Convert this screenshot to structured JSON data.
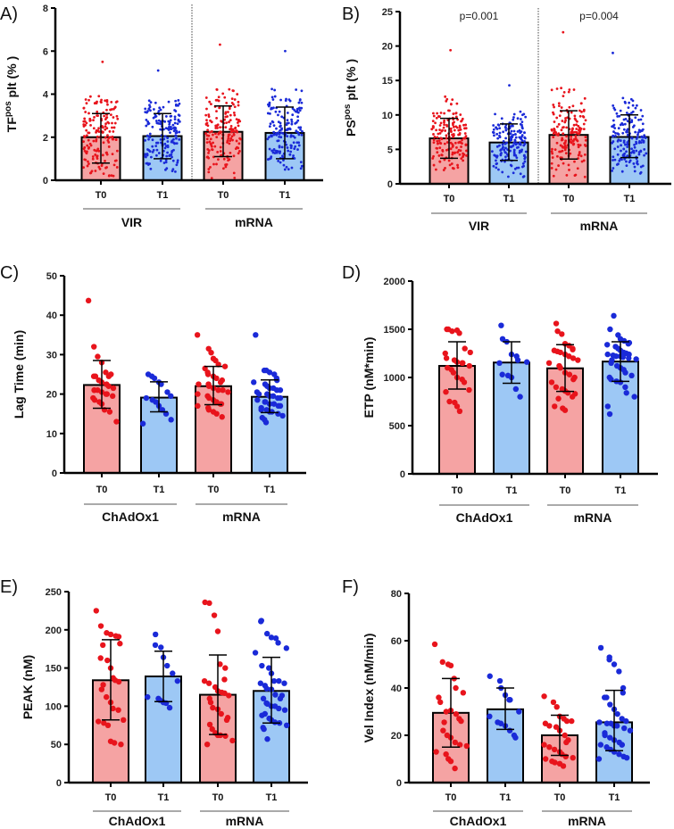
{
  "colors": {
    "t0_bar": "#f5a3a3",
    "t1_bar": "#9dc8f5",
    "t0_point": "#e8141c",
    "t1_point": "#1a2ad8",
    "axis": "#000000"
  },
  "chart_data": [
    {
      "panel": "A)",
      "type": "bar",
      "ylabel": {
        "base": "TF",
        "sup": "pos",
        "rest": " plt (% )"
      },
      "ylim": [
        0,
        8
      ],
      "yticks": [
        "0",
        "2",
        "4",
        "6",
        "8"
      ],
      "categories": [
        "T0",
        "T1",
        "T0",
        "T1"
      ],
      "groups": [
        "VIR",
        "mRNA"
      ],
      "separator": true,
      "pvalues": [],
      "bars": [
        {
          "mean": 2.0,
          "sd": [
            0.8,
            3.1
          ],
          "point_range": [
            0.2,
            5.5
          ]
        },
        {
          "mean": 2.05,
          "sd": [
            1.0,
            3.1
          ],
          "point_range": [
            0.4,
            5.1
          ]
        },
        {
          "mean": 2.25,
          "sd": [
            1.1,
            3.45
          ],
          "point_range": [
            0.1,
            6.3
          ]
        },
        {
          "mean": 2.2,
          "sd": [
            1.0,
            3.4
          ],
          "point_range": [
            0.5,
            6.0
          ]
        }
      ]
    },
    {
      "panel": "B)",
      "type": "bar",
      "ylabel": {
        "base": "PS",
        "sup": "pos",
        "rest": " plt (% )"
      },
      "ylim": [
        0,
        25
      ],
      "yticks": [
        "0",
        "5",
        "10",
        "15",
        "20",
        "25"
      ],
      "categories": [
        "T0",
        "T1",
        "T0",
        "T1"
      ],
      "groups": [
        "VIR",
        "mRNA"
      ],
      "separator": true,
      "pvalues": [
        "p=0.001",
        "p=0.004"
      ],
      "bars": [
        {
          "mean": 6.6,
          "sd": [
            3.7,
            9.5
          ],
          "point_range": [
            2.0,
            19.4
          ]
        },
        {
          "mean": 6.0,
          "sd": [
            3.4,
            8.7
          ],
          "point_range": [
            1.0,
            14.3
          ]
        },
        {
          "mean": 7.1,
          "sd": [
            3.6,
            10.6
          ],
          "point_range": [
            1.0,
            22.0
          ]
        },
        {
          "mean": 6.8,
          "sd": [
            3.8,
            10.0
          ],
          "point_range": [
            1.5,
            19.0
          ]
        }
      ]
    },
    {
      "panel": "C)",
      "type": "bar",
      "ylabel": {
        "base": "Lag Time (min)",
        "sup": "",
        "rest": ""
      },
      "ylim": [
        0,
        50
      ],
      "yticks": [
        "0",
        "10",
        "20",
        "30",
        "40",
        "50"
      ],
      "categories": [
        "T0",
        "T1",
        "T0",
        "T1"
      ],
      "groups": [
        "ChAdOx1",
        "mRNA"
      ],
      "separator": false,
      "pvalues": [],
      "bars": [
        {
          "mean": 22.3,
          "sd": [
            16.4,
            28.5
          ],
          "points": [
            43.7,
            32,
            29.5,
            28,
            25.5,
            25,
            24.5,
            24.5,
            24.5,
            23.5,
            23,
            22.5,
            22,
            21.5,
            21,
            21,
            21,
            20.5,
            20,
            20,
            19.5,
            19,
            18.5,
            18,
            17.5,
            16,
            15.5,
            13
          ]
        },
        {
          "mean": 19.1,
          "sd": [
            15.5,
            23.1
          ],
          "points": [
            25,
            24.5,
            24,
            23,
            22.5,
            20.5,
            19.5,
            19,
            18.5,
            18,
            17,
            16,
            15,
            13.5,
            12.5
          ]
        },
        {
          "mean": 22.0,
          "sd": [
            17.3,
            27.0
          ],
          "points": [
            35,
            31.5,
            30.5,
            29,
            28.5,
            27.5,
            27,
            26.5,
            25.5,
            25,
            24.5,
            24,
            23.5,
            23,
            22.5,
            22.5,
            22,
            21.5,
            21,
            21,
            20.5,
            20,
            19.5,
            19,
            18.5,
            18,
            17.5,
            17.5,
            17,
            16.5,
            16,
            15.5,
            15,
            14.2
          ]
        },
        {
          "mean": 19.3,
          "sd": [
            15.3,
            23.6
          ],
          "points": [
            35,
            26,
            26,
            25.5,
            25,
            24,
            23.5,
            23,
            22.5,
            22,
            21.5,
            21.5,
            21,
            21,
            20.5,
            20,
            20,
            19.5,
            19.5,
            19,
            19,
            18.5,
            18,
            18,
            17.5,
            17.5,
            17,
            17,
            16.5,
            16,
            16,
            15.5,
            15.5,
            15,
            14.5,
            14,
            13.5,
            12.8
          ]
        }
      ]
    },
    {
      "panel": "D)",
      "type": "bar",
      "ylabel": {
        "base": "ETP (nM*min)",
        "sup": "",
        "rest": ""
      },
      "ylim": [
        0,
        2000
      ],
      "yticks": [
        "0",
        "500",
        "1000",
        "1500",
        "2000"
      ],
      "categories": [
        "T0",
        "T1",
        "T0",
        "T1"
      ],
      "groups": [
        "ChAdOx1",
        "mRNA"
      ],
      "separator": false,
      "pvalues": [],
      "bars": [
        {
          "mean": 1120,
          "sd": [
            880,
            1370
          ],
          "points": [
            1500,
            1500,
            1480,
            1490,
            1460,
            1300,
            1260,
            1250,
            1200,
            1180,
            1160,
            1150,
            1150,
            1120,
            1100,
            1080,
            1050,
            1000,
            980,
            950,
            870,
            850,
            750,
            740,
            700,
            650
          ]
        },
        {
          "mean": 1155,
          "sd": [
            940,
            1370
          ],
          "points": [
            1540,
            1400,
            1370,
            1240,
            1220,
            1180,
            1160,
            1150,
            1030,
            1020,
            1000,
            880,
            800
          ]
        },
        {
          "mean": 1095,
          "sd": [
            855,
            1340
          ],
          "points": [
            1560,
            1480,
            1450,
            1350,
            1330,
            1300,
            1290,
            1280,
            1270,
            1260,
            1240,
            1220,
            1200,
            1180,
            1150,
            1120,
            1100,
            1050,
            1030,
            1000,
            980,
            950,
            900,
            880,
            860,
            840,
            830,
            800,
            780,
            700,
            680,
            660
          ]
        },
        {
          "mean": 1165,
          "sd": [
            960,
            1370
          ],
          "points": [
            1640,
            1500,
            1440,
            1400,
            1380,
            1360,
            1350,
            1340,
            1320,
            1300,
            1280,
            1260,
            1250,
            1240,
            1240,
            1230,
            1220,
            1220,
            1210,
            1200,
            1190,
            1180,
            1150,
            1120,
            1100,
            1080,
            1050,
            1020,
            1000,
            980,
            960,
            950,
            900,
            840,
            800,
            700,
            620
          ]
        }
      ]
    },
    {
      "panel": "E)",
      "type": "bar",
      "ylabel": {
        "base": "PEAK (nM)",
        "sup": "",
        "rest": ""
      },
      "ylim": [
        0,
        250
      ],
      "yticks": [
        "0",
        "50",
        "100",
        "150",
        "200",
        "250"
      ],
      "categories": [
        "T0",
        "T1",
        "T0",
        "T1"
      ],
      "groups": [
        "ChAdOx1",
        "mRNA"
      ],
      "separator": false,
      "pvalues": [],
      "bars": [
        {
          "mean": 134,
          "sd": [
            82,
            187
          ],
          "points": [
            225,
            205,
            196,
            194,
            192,
            191,
            182,
            180,
            163,
            160,
            150,
            137,
            134,
            132,
            128,
            122,
            112,
            105,
            97,
            95,
            82,
            80,
            78,
            75,
            54,
            52,
            50
          ]
        },
        {
          "mean": 139,
          "sd": [
            106,
            172
          ],
          "points": [
            194,
            180,
            177,
            164,
            153,
            143,
            133,
            112,
            110,
            108,
            105,
            104,
            98
          ]
        },
        {
          "mean": 115,
          "sd": [
            63,
            167
          ],
          "points": [
            236,
            235,
            219,
            198,
            155,
            150,
            135,
            133,
            130,
            125,
            120,
            118,
            117,
            114,
            110,
            105,
            98,
            96,
            90,
            85,
            82,
            76,
            70,
            65,
            62,
            62,
            61,
            55,
            50
          ]
        },
        {
          "mean": 120,
          "sd": [
            78,
            164
          ],
          "points": [
            212,
            211,
            195,
            190,
            189,
            183,
            176,
            170,
            153,
            150,
            143,
            133,
            133,
            130,
            130,
            127,
            123,
            122,
            115,
            114,
            110,
            110,
            104,
            103,
            100,
            100,
            97,
            95,
            90,
            88,
            84,
            82,
            79,
            78,
            75,
            72,
            70,
            57
          ]
        }
      ]
    },
    {
      "panel": "F)",
      "type": "bar",
      "ylabel": {
        "base": "Vel Index (nM/min)",
        "sup": "",
        "rest": ""
      },
      "ylim": [
        0,
        80
      ],
      "yticks": [
        "0",
        "20",
        "40",
        "60",
        "80"
      ],
      "categories": [
        "T0",
        "T1",
        "T0",
        "T1"
      ],
      "groups": [
        "ChAdOx1",
        "mRNA"
      ],
      "separator": false,
      "pvalues": [],
      "bars": [
        {
          "mean": 29.5,
          "sd": [
            15,
            44
          ],
          "points": [
            58.5,
            51,
            50,
            49.5,
            44,
            40,
            38,
            36,
            34,
            30,
            30.5,
            29,
            27,
            26,
            25.5,
            22,
            20,
            19,
            17,
            16,
            15.5,
            13,
            12,
            10,
            9,
            6
          ]
        },
        {
          "mean": 31,
          "sd": [
            22.5,
            40
          ],
          "points": [
            45,
            43,
            40,
            37,
            35,
            35,
            30,
            28,
            25.5,
            25,
            24,
            22,
            20,
            19
          ]
        },
        {
          "mean": 20,
          "sd": [
            11.5,
            28.5
          ],
          "points": [
            36.5,
            34,
            32,
            28,
            27,
            26,
            26,
            25,
            24,
            23.5,
            22,
            20,
            18,
            17,
            16,
            15,
            14,
            13,
            12,
            11,
            10.5,
            10,
            9,
            8.5,
            8,
            7
          ]
        },
        {
          "mean": 25.5,
          "sd": [
            13.5,
            39
          ],
          "points": [
            57,
            53,
            52,
            50,
            47,
            40,
            38,
            36,
            36,
            33,
            31,
            29,
            27,
            26,
            25.5,
            25,
            25,
            24,
            24,
            23,
            22,
            21,
            20,
            19,
            18,
            17,
            16,
            16,
            16,
            15,
            14,
            13,
            12,
            11,
            10.5,
            10
          ]
        }
      ]
    }
  ]
}
